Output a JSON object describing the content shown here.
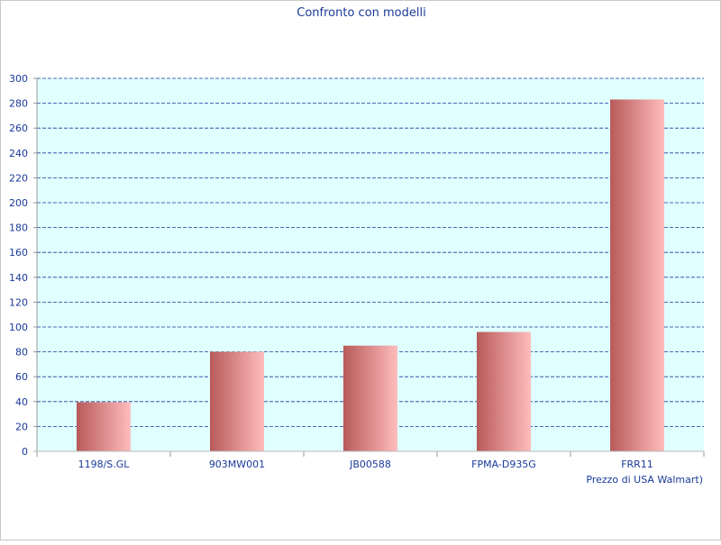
{
  "chart_data": {
    "type": "bar",
    "title": "Confronto con modelli",
    "xlabel": "Prezzo di USA Walmart)",
    "ylabel": "",
    "categories": [
      "1198/S.GL",
      "903MW001",
      "JB00588",
      "FPMA-D935G",
      "FRR11"
    ],
    "values": [
      39.5,
      80,
      85,
      96,
      283
    ],
    "ylim": [
      0,
      300
    ],
    "yticks": [
      0,
      20,
      40,
      60,
      80,
      100,
      120,
      140,
      160,
      180,
      200,
      220,
      240,
      260,
      280,
      300
    ],
    "grid": true,
    "legend": "none"
  },
  "colors": {
    "text": "#1a3a9a",
    "plot_background": "#e0ffff",
    "grid": "#1a3a9a",
    "bar_dark": "#b85a5a",
    "bar_light": "#ffbcbc"
  }
}
